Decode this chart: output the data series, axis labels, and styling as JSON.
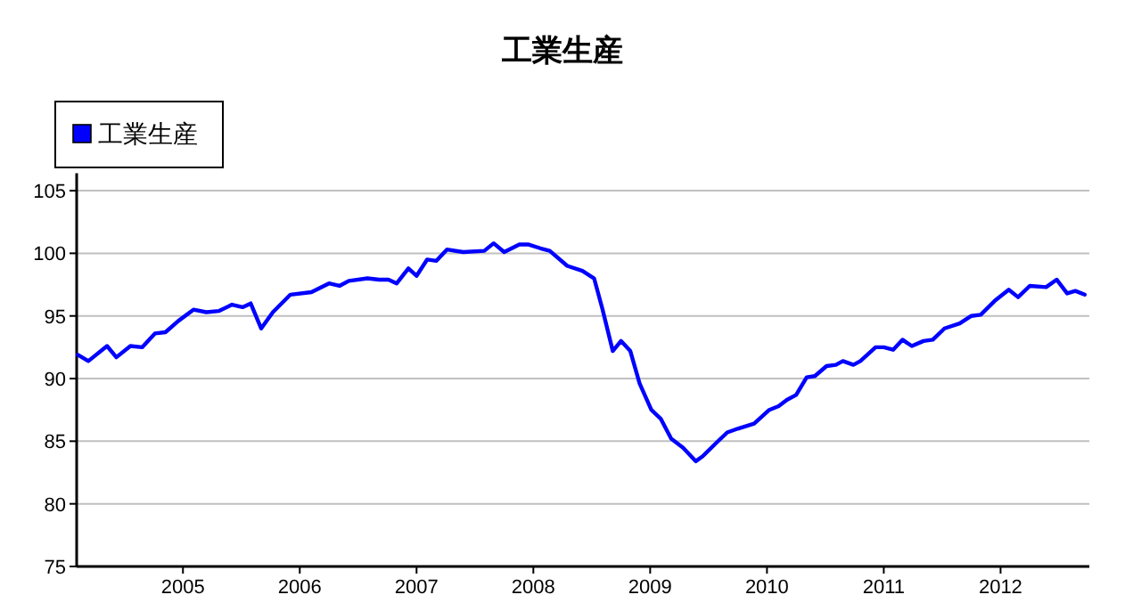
{
  "chart_data": {
    "type": "line",
    "title": "工業生産",
    "grid": "y",
    "legend": "top left",
    "xlim": [
      2004.09,
      2012.76
    ],
    "xticks": [
      2005,
      2006,
      2007,
      2008,
      2009,
      2010,
      2011,
      2012
    ],
    "ylim": [
      75,
      106.4
    ],
    "yticks": [
      75,
      80,
      85,
      90,
      95,
      100,
      105
    ],
    "series": [
      {
        "name": "工業生産",
        "color": "#0000ff",
        "x": [
          2004.1,
          2004.19,
          2004.35,
          2004.43,
          2004.55,
          2004.65,
          2004.76,
          2004.85,
          2004.96,
          2005.09,
          2005.2,
          2005.31,
          2005.42,
          2005.51,
          2005.58,
          2005.67,
          2005.77,
          2005.92,
          2006.1,
          2006.25,
          2006.34,
          2006.42,
          2006.58,
          2006.68,
          2006.76,
          2006.83,
          2006.93,
          2007.0,
          2007.09,
          2007.17,
          2007.26,
          2007.4,
          2007.58,
          2007.66,
          2007.75,
          2007.88,
          2007.96,
          2008.06,
          2008.14,
          2008.29,
          2008.42,
          2008.52,
          2008.59,
          2008.68,
          2008.75,
          2008.83,
          2008.91,
          2009.01,
          2009.09,
          2009.18,
          2009.28,
          2009.39,
          2009.45,
          2009.57,
          2009.66,
          2009.75,
          2009.89,
          2010.02,
          2010.1,
          2010.17,
          2010.25,
          2010.34,
          2010.41,
          2010.51,
          2010.59,
          2010.65,
          2010.74,
          2010.8,
          2010.93,
          2011.0,
          2011.08,
          2011.16,
          2011.24,
          2011.34,
          2011.42,
          2011.52,
          2011.65,
          2011.75,
          2011.83,
          2011.95,
          2012.07,
          2012.15,
          2012.25,
          2012.39,
          2012.48,
          2012.57,
          2012.64,
          2012.72
        ],
        "values": [
          91.9,
          91.4,
          92.6,
          91.7,
          92.6,
          92.5,
          93.6,
          93.7,
          94.6,
          95.5,
          95.3,
          95.4,
          95.9,
          95.7,
          96.0,
          94.0,
          95.3,
          96.7,
          96.9,
          97.6,
          97.4,
          97.8,
          98.0,
          97.9,
          97.9,
          97.6,
          98.8,
          98.2,
          99.5,
          99.4,
          100.3,
          100.1,
          100.2,
          100.8,
          100.1,
          100.7,
          100.7,
          100.4,
          100.2,
          99.0,
          98.6,
          98.0,
          95.6,
          92.2,
          93.0,
          92.2,
          89.6,
          87.5,
          86.8,
          85.2,
          84.5,
          83.4,
          83.8,
          84.9,
          85.7,
          86.0,
          86.4,
          87.5,
          87.8,
          88.3,
          88.7,
          90.1,
          90.2,
          91.0,
          91.1,
          91.4,
          91.1,
          91.4,
          92.5,
          92.5,
          92.3,
          93.1,
          92.6,
          93.0,
          93.1,
          94.0,
          94.4,
          95.0,
          95.1,
          96.2,
          97.1,
          96.5,
          97.4,
          97.3,
          97.9,
          96.8,
          97.0,
          96.7
        ]
      }
    ]
  }
}
